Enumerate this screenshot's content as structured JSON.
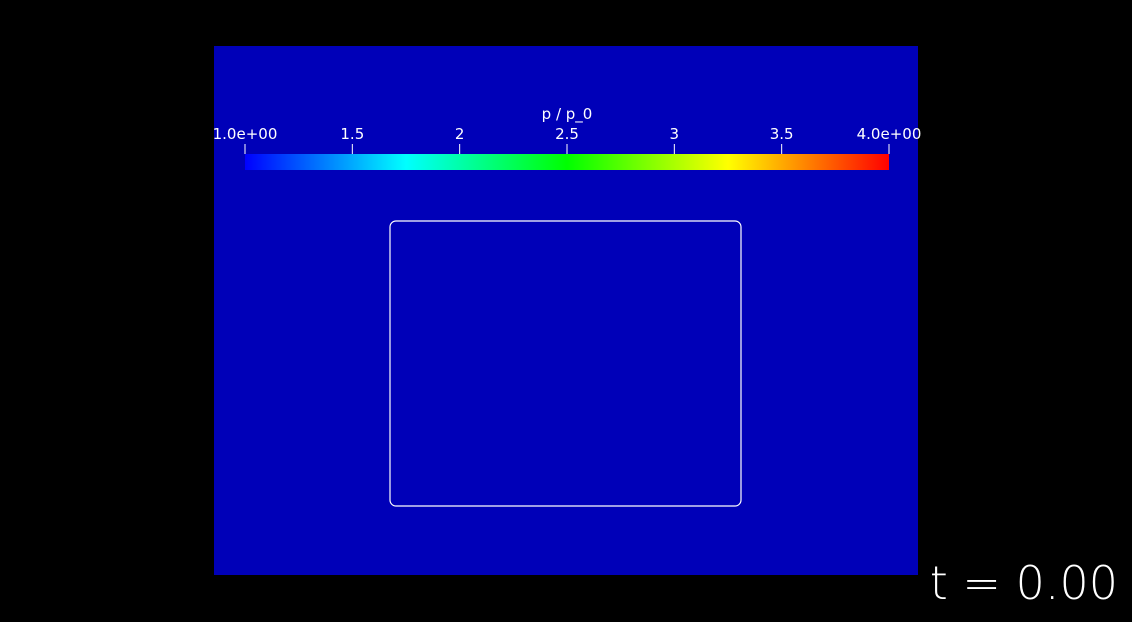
{
  "chart_data": {
    "type": "heatmap",
    "colorbar": {
      "title": "p / p_0",
      "range": [
        1.0,
        4.0
      ],
      "ticks": [
        1.0,
        1.5,
        2.0,
        2.5,
        3.0,
        3.5,
        4.0
      ],
      "tick_labels": [
        "1.0e+00",
        "1.5",
        "2",
        "2.5",
        "3",
        "3.5",
        "4.0e+00"
      ],
      "colormap": [
        "#0000ff",
        "#00ffff",
        "#00ff00",
        "#ffff00",
        "#ff0000"
      ]
    },
    "field": {
      "value": 1.0,
      "color": "#0000b8"
    },
    "region_outline": {
      "color": "#ffffff",
      "shape": "rounded-rectangle"
    }
  },
  "time_label": "t = 0.00",
  "colors": {
    "background": "#000000",
    "text": "#ffffff"
  }
}
